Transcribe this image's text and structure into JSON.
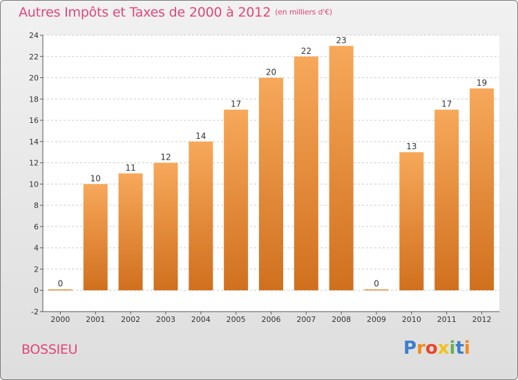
{
  "header": {
    "title": "Autres Impôts et Taxes de 2000 à 2012",
    "unit_label": "(en milliers d'€)"
  },
  "footer": {
    "place_name": "BOSSIEU",
    "logo_text": "Proxiti",
    "logo_letter_colors": [
      "#3a7fd0",
      "#f28a1e",
      "#e8472a",
      "#f2c21e",
      "#6ab04c",
      "#3a7fd0",
      "#f28a1e"
    ]
  },
  "colors": {
    "title": "#e0467a",
    "bar_light": "#f7a85a",
    "bar_dark": "#d0701e",
    "plot_bg": "#ffffff",
    "grid": "#cccccc"
  },
  "chart_data": {
    "type": "bar",
    "categories": [
      "2000",
      "2001",
      "2002",
      "2003",
      "2004",
      "2005",
      "2006",
      "2007",
      "2008",
      "2009",
      "2010",
      "2011",
      "2012"
    ],
    "values": [
      0,
      10,
      11,
      12,
      14,
      17,
      20,
      22,
      23,
      0,
      13,
      17,
      19
    ],
    "data_labels": [
      "0",
      "10",
      "11",
      "12",
      "14",
      "17",
      "20",
      "22",
      "23",
      "0",
      "13",
      "17",
      "19"
    ],
    "title": "Autres Impôts et Taxes de 2000 à 2012",
    "xlabel": "",
    "ylabel": "",
    "ylim": [
      -2,
      24
    ],
    "yticks": [
      -2,
      0,
      2,
      4,
      6,
      8,
      10,
      12,
      14,
      16,
      18,
      20,
      22,
      24
    ],
    "grid": true
  }
}
